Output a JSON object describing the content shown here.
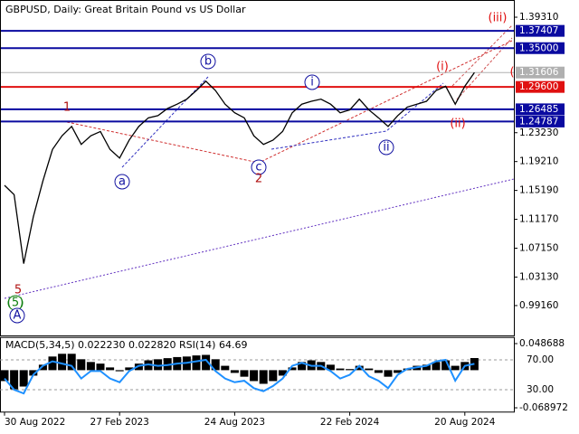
{
  "chart_data": [
    {
      "type": "line",
      "title": "GBPUSD, Daily:  Great Britain Pound vs US Dollar",
      "categories": [
        "30 Aug 2022",
        null,
        null,
        null,
        null,
        null,
        null,
        null,
        null,
        null,
        null,
        null,
        "27 Feb 2023",
        null,
        null,
        null,
        null,
        null,
        null,
        null,
        null,
        null,
        null,
        null,
        "24 Aug 2023",
        null,
        null,
        null,
        null,
        null,
        null,
        null,
        null,
        null,
        null,
        null,
        "22 Feb 2024",
        null,
        null,
        null,
        null,
        null,
        null,
        null,
        null,
        null,
        null,
        null,
        "20 Aug 2024",
        null
      ],
      "series": [
        {
          "color": "#000000",
          "values": [
            1.159,
            1.146,
            1.05,
            1.115,
            1.165,
            1.209,
            1.228,
            1.241,
            1.216,
            1.228,
            1.234,
            1.209,
            1.197,
            1.222,
            1.241,
            1.253,
            1.256,
            1.266,
            1.272,
            1.279,
            1.291,
            1.304,
            1.291,
            1.272,
            1.26,
            1.253,
            1.228,
            1.216,
            1.222,
            1.234,
            1.26,
            1.272,
            1.276,
            1.279,
            1.272,
            1.26,
            1.264,
            1.279,
            1.264,
            1.253,
            1.241,
            1.256,
            1.268,
            1.272,
            1.276,
            1.291,
            1.297,
            1.272,
            1.297,
            1.316
          ]
        }
      ],
      "ylim": [
        0.95,
        1.41
      ],
      "yticks": [
        {
          "value": 1.3931,
          "label": "1.39310"
        },
        {
          "value": 1.2323,
          "label": "1.23230"
        },
        {
          "value": 1.1921,
          "label": "1.19210"
        },
        {
          "value": 1.1519,
          "label": "1.15190"
        },
        {
          "value": 1.1117,
          "label": "1.11170"
        },
        {
          "value": 1.0715,
          "label": "1.07150"
        },
        {
          "value": 1.0313,
          "label": "1.03130"
        },
        {
          "value": 0.9916,
          "label": "0.99160"
        }
      ],
      "levels": [
        {
          "value": 1.37407,
          "label": "1.37407",
          "color": "#0a0aa0"
        },
        {
          "value": 1.35,
          "label": "1.35000",
          "color": "#0a0aa0"
        },
        {
          "value": 1.31606,
          "label": "1.31606",
          "color": "#b0b0b0"
        },
        {
          "value": 1.296,
          "label": "1.29600",
          "color": "#e01010"
        },
        {
          "value": 1.26485,
          "label": "1.26485",
          "color": "#0a0aa0"
        },
        {
          "value": 1.24787,
          "label": "1.24787",
          "color": "#0a0aa0"
        }
      ],
      "annotations": [
        {
          "text": "(iii)",
          "color": "#e01010"
        },
        {
          "text": "(i)",
          "color": "#e01010"
        },
        {
          "text": "(",
          "color": "#e01010"
        },
        {
          "text": "(ii)",
          "color": "#e01010"
        },
        {
          "text": "b",
          "color": "#1010a0"
        },
        {
          "text": "i",
          "color": "#1010a0"
        },
        {
          "text": "a",
          "color": "#1010a0"
        },
        {
          "text": "c",
          "color": "#1010a0"
        },
        {
          "text": "ii",
          "color": "#1010a0"
        },
        {
          "text": "1",
          "color": "#b01010"
        },
        {
          "text": "2",
          "color": "#b01010"
        },
        {
          "text": "5",
          "color": "#b01010"
        },
        {
          "text": "(5)",
          "color": "#108010"
        },
        {
          "text": "A",
          "color": "#1010a0"
        }
      ]
    },
    {
      "type": "indicator",
      "title": "MACD(5,34,5) 0.022230 0.022820 RSI(14) 64.69",
      "series": [
        {
          "name": "MACD",
          "color": "#000000",
          "axis": "y2",
          "values": [
            -0.02,
            -0.035,
            -0.03,
            -0.01,
            0.01,
            0.025,
            0.03,
            0.03,
            0.02,
            0.015,
            0.012,
            0.005,
            -0.002,
            0.005,
            0.012,
            0.018,
            0.02,
            0.022,
            0.024,
            0.025,
            0.027,
            0.028,
            0.02,
            0.008,
            -0.005,
            -0.012,
            -0.02,
            -0.025,
            -0.02,
            -0.01,
            0.005,
            0.015,
            0.018,
            0.015,
            0.01,
            0.003,
            0.002,
            0.008,
            0.003,
            -0.005,
            -0.012,
            -0.005,
            0.003,
            0.008,
            0.01,
            0.015,
            0.018,
            0.008,
            0.015,
            0.0222
          ]
        },
        {
          "name": "RSI",
          "color": "#1e90ff",
          "values": [
            45,
            30,
            25,
            50,
            62,
            68,
            65,
            62,
            45,
            55,
            55,
            45,
            40,
            55,
            62,
            64,
            62,
            63,
            65,
            66,
            68,
            70,
            55,
            45,
            40,
            42,
            32,
            28,
            35,
            45,
            62,
            66,
            62,
            62,
            55,
            45,
            50,
            62,
            48,
            42,
            32,
            50,
            58,
            60,
            62,
            68,
            70,
            42,
            62,
            64.69
          ]
        }
      ],
      "ylim": [
        0,
        100
      ],
      "yticks": [
        {
          "value": 70,
          "label": "70.00"
        },
        {
          "value": 30,
          "label": "30.00"
        }
      ],
      "y2lim": [
        -0.0768,
        0.0599
      ],
      "y2ticks": [
        {
          "value": 0.048688,
          "label": "0.048688"
        },
        {
          "value": -0.068972,
          "label": "-0.068972"
        }
      ]
    }
  ]
}
